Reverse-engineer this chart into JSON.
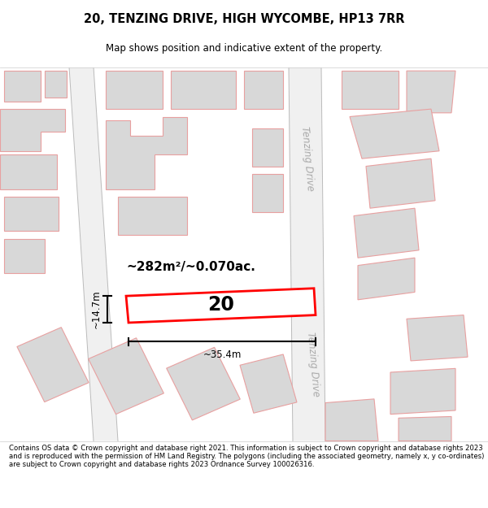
{
  "title": "20, TENZING DRIVE, HIGH WYCOMBE, HP13 7RR",
  "subtitle": "Map shows position and indicative extent of the property.",
  "footer": "Contains OS data © Crown copyright and database right 2021. This information is subject to Crown copyright and database rights 2023 and is reproduced with the permission of HM Land Registry. The polygons (including the associated geometry, namely x, y co-ordinates) are subject to Crown copyright and database rights 2023 Ordnance Survey 100026316.",
  "area_label": "~282m²/~0.070ac.",
  "width_label": "~35.4m",
  "height_label": "~14.7m",
  "property_number": "20",
  "map_bg": "#f7f7f7",
  "building_fill": "#d8d8d8",
  "building_edge": "#e8a0a0",
  "highlight_fill": "#ffffff",
  "highlight_edge": "#ff0000",
  "road_label_color": "#aaaaaa",
  "road_line_color": "#bbbbbb"
}
